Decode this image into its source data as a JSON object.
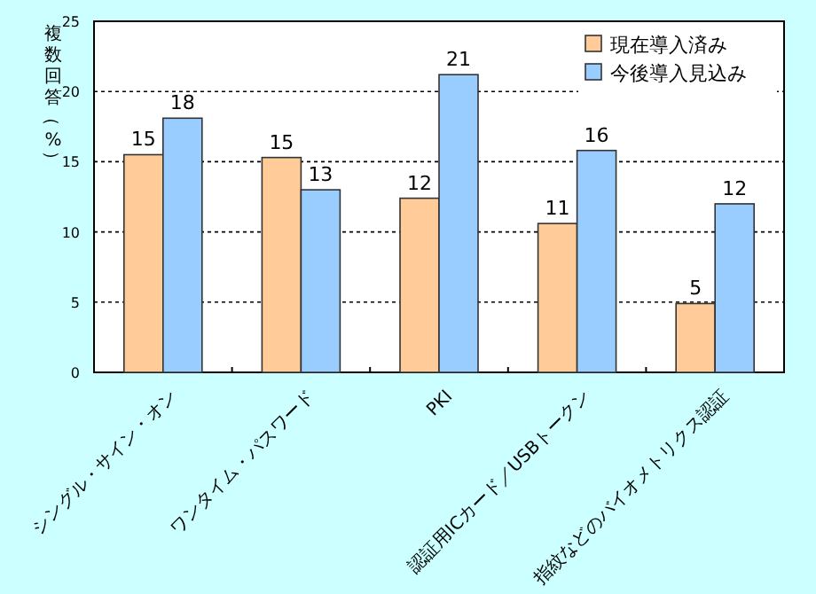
{
  "chart_data": {
    "type": "bar",
    "ylabel": "複数回答（%）",
    "categories": [
      "シングル・サイン・オン",
      "ワンタイム・パスワード",
      "PKI",
      "認証用ICカード／USBトークン",
      "指紋などのバイオメトリクス認証"
    ],
    "series": [
      {
        "name": "現在導入済み",
        "color": "#ffcc99",
        "values": [
          15.5,
          15.3,
          12.4,
          10.6,
          4.9
        ],
        "value_labels": [
          "15",
          "15",
          "12",
          "11",
          "5"
        ]
      },
      {
        "name": "今後導入見込み",
        "color": "#99ccff",
        "values": [
          18.1,
          13.0,
          21.2,
          15.8,
          12.0
        ],
        "value_labels": [
          "18",
          "13",
          "21",
          "16",
          "12"
        ]
      }
    ],
    "ylim": [
      0,
      25
    ],
    "yticks": [
      0,
      5,
      10,
      15,
      20,
      25
    ],
    "grid": "y",
    "legend": "top right"
  }
}
